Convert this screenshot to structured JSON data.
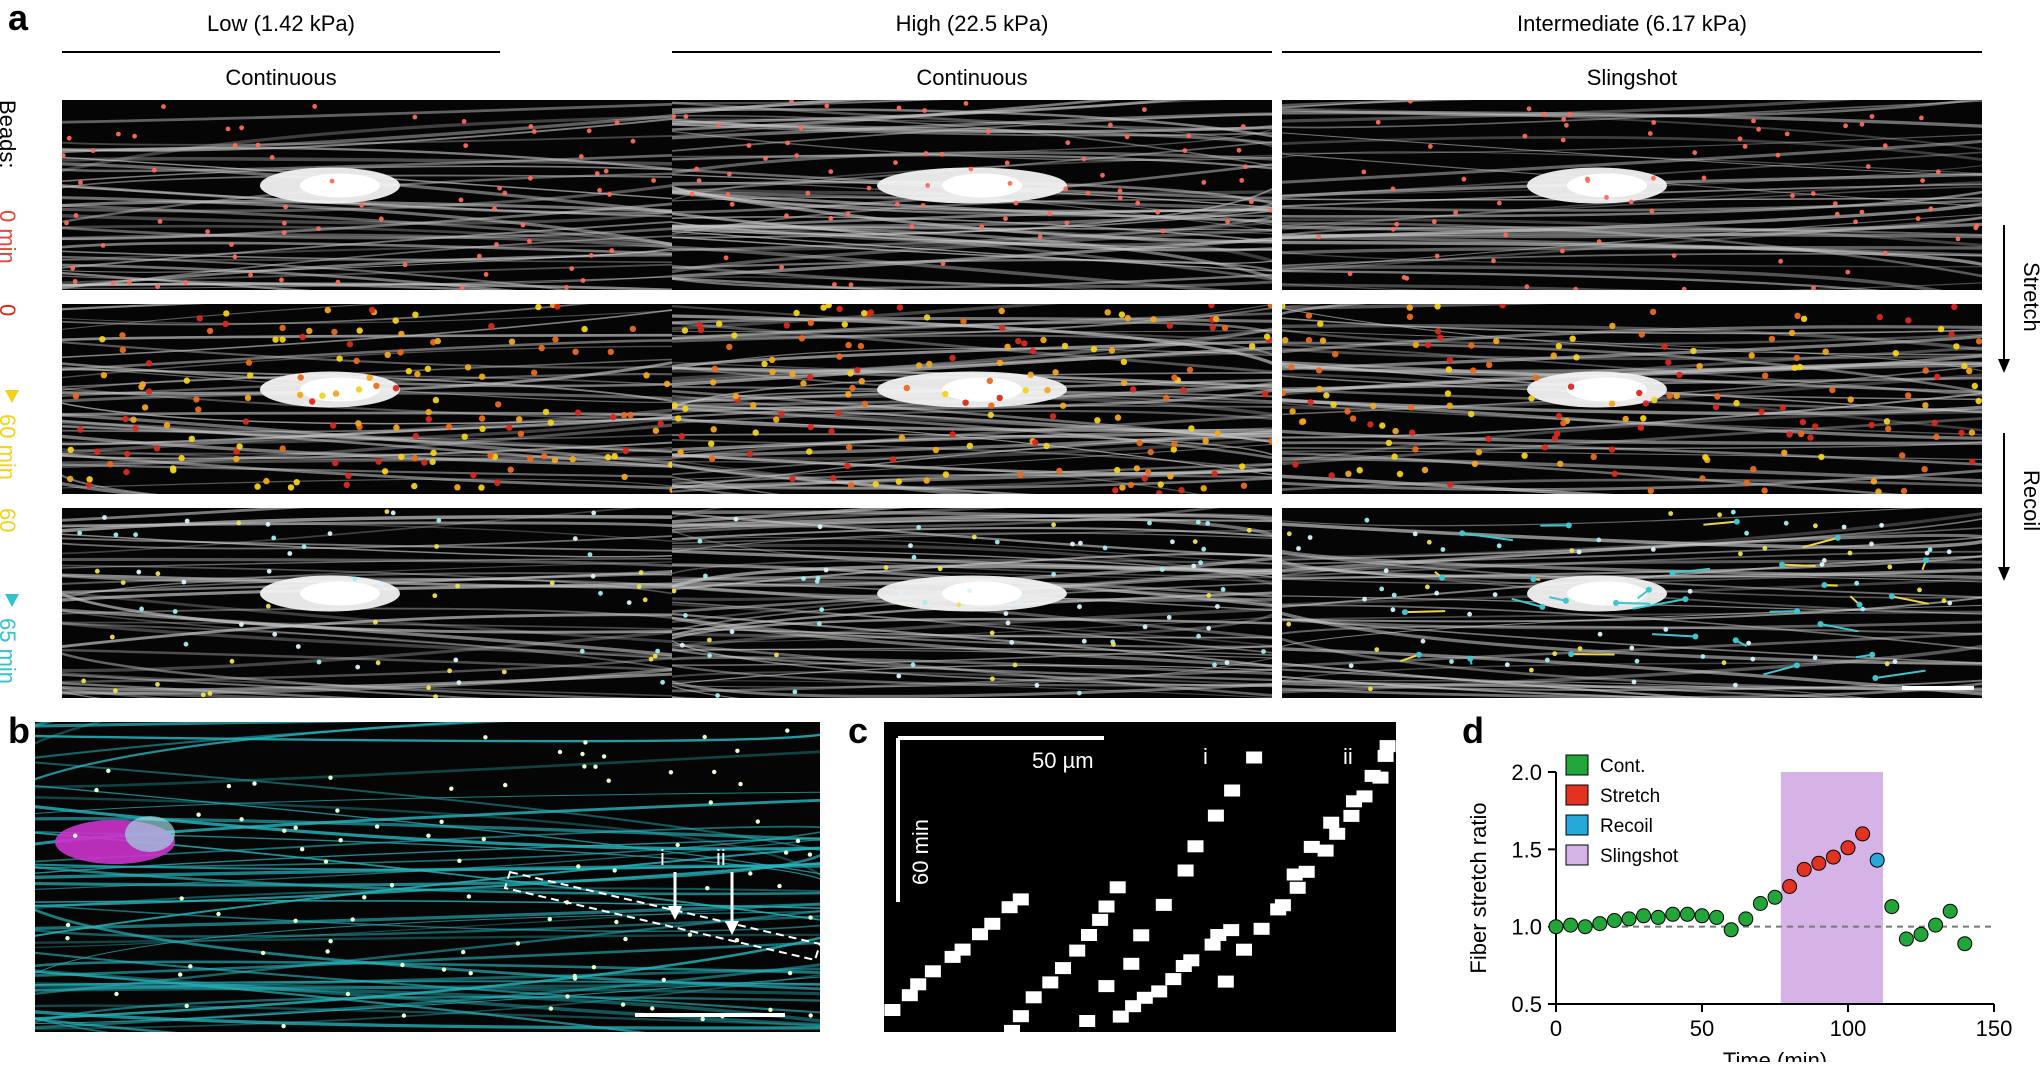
{
  "panels": {
    "a": {
      "letter": "a",
      "columns": [
        {
          "stiffness": "Low (1.42 kPa)",
          "mode": "Continuous"
        },
        {
          "stiffness": "High (22.5 kPa)",
          "mode": "Continuous"
        },
        {
          "stiffness": "Intermediate (6.17 kPa)",
          "mode": "Slingshot"
        }
      ],
      "rows": [
        {
          "label_a": "Beads:",
          "label_b": "0 min"
        },
        {
          "label_a": "0",
          "label_b": "60 min"
        },
        {
          "label_a": "60",
          "label_b": "65 min"
        }
      ],
      "right_labels": {
        "stretch": "Stretch",
        "recoil": "Recoil"
      },
      "colors": {
        "row1": "#e4463c",
        "row2_start": "#d9291c",
        "row2_end": "#f2d21b",
        "row3_start": "#f2d21b",
        "row3_end": "#35c2cf"
      }
    },
    "b": {
      "letter": "b",
      "markers": [
        "i",
        "ii"
      ]
    },
    "c": {
      "letter": "c",
      "scale_x": "50 µm",
      "scale_y": "60 min",
      "markers": [
        "i",
        "ii"
      ]
    },
    "d": {
      "letter": "d"
    }
  },
  "chart_data": {
    "type": "scatter",
    "xlabel": "Time (min)",
    "ylabel": "Fiber stretch ratio",
    "xlim": [
      0,
      150
    ],
    "ylim": [
      0.5,
      2.0
    ],
    "xticks": [
      0,
      50,
      100,
      150
    ],
    "yticks": [
      0.5,
      1.0,
      1.5,
      2.0
    ],
    "yticks_labels": [
      "0.5",
      "1.0",
      "1.5",
      "2.0"
    ],
    "reference_line": 1.0,
    "shaded_region": {
      "name": "Slingshot",
      "x": [
        77,
        112
      ],
      "color": "#d6b3e6"
    },
    "legend_position": "top-left",
    "series": [
      {
        "name": "Cont.",
        "color": "#22a63a",
        "x": [
          0,
          5,
          10,
          15,
          20,
          25,
          30,
          35,
          40,
          45,
          50,
          55,
          60,
          65,
          70,
          75,
          115,
          120,
          125,
          130,
          135,
          140
        ],
        "y": [
          1.0,
          1.01,
          1.0,
          1.02,
          1.04,
          1.05,
          1.07,
          1.06,
          1.08,
          1.08,
          1.07,
          1.06,
          0.98,
          1.05,
          1.15,
          1.19,
          1.13,
          0.92,
          0.95,
          1.01,
          1.1,
          0.89
        ]
      },
      {
        "name": "Stretch",
        "color": "#e23222",
        "x": [
          80,
          85,
          90,
          95,
          100,
          105
        ],
        "y": [
          1.26,
          1.37,
          1.41,
          1.45,
          1.51,
          1.6
        ]
      },
      {
        "name": "Recoil",
        "color": "#26a8d8",
        "x": [
          110
        ],
        "y": [
          1.43
        ]
      }
    ]
  }
}
